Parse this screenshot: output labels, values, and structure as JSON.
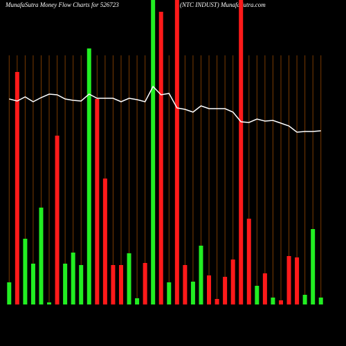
{
  "chart_data": {
    "type": "bar",
    "title": "MunafaSutra  Money Flow  Charts for 526723",
    "subtitle": "(NTC INDUST) MunafaSutra.com",
    "values": [
      32,
      336,
      95,
      59,
      140,
      3,
      244,
      59,
      75,
      57,
      370,
      297,
      182,
      57,
      57,
      74,
      9,
      60,
      440,
      423,
      32,
      440,
      57,
      33,
      85,
      42,
      8,
      40,
      65,
      440,
      124,
      27,
      45,
      10,
      6,
      70,
      68,
      14,
      109,
      10
    ],
    "colors": [
      "#22ee22",
      "#ff1a1a",
      "#22ee22",
      "#22ee22",
      "#22ee22",
      "#22ee22",
      "#ff1a1a",
      "#22ee22",
      "#22ee22",
      "#22ee22",
      "#22ee22",
      "#ff1a1a",
      "#ff1a1a",
      "#ff1a1a",
      "#ff1a1a",
      "#22ee22",
      "#22ee22",
      "#ff1a1a",
      "#22ee22",
      "#ff1a1a",
      "#22ee22",
      "#ff1a1a",
      "#ff1a1a",
      "#22ee22",
      "#22ee22",
      "#ff1a1a",
      "#ff1a1a",
      "#ff1a1a",
      "#ff1a1a",
      "#ff1a1a",
      "#ff1a1a",
      "#22ee22",
      "#ff1a1a",
      "#22ee22",
      "#ff1a1a",
      "#ff1a1a",
      "#ff1a1a",
      "#22ee22",
      "#22ee22",
      "#22ee22"
    ],
    "line_values": [
      297,
      294,
      300,
      293,
      299,
      304,
      303,
      297,
      295,
      294,
      304,
      298,
      298,
      298,
      293,
      298,
      296,
      293,
      315,
      303,
      305,
      284,
      282,
      278,
      287,
      283,
      283,
      283,
      278,
      264,
      263,
      268,
      265,
      266,
      262,
      258,
      249,
      250,
      250,
      251
    ],
    "line_color": "#ffffff"
  }
}
